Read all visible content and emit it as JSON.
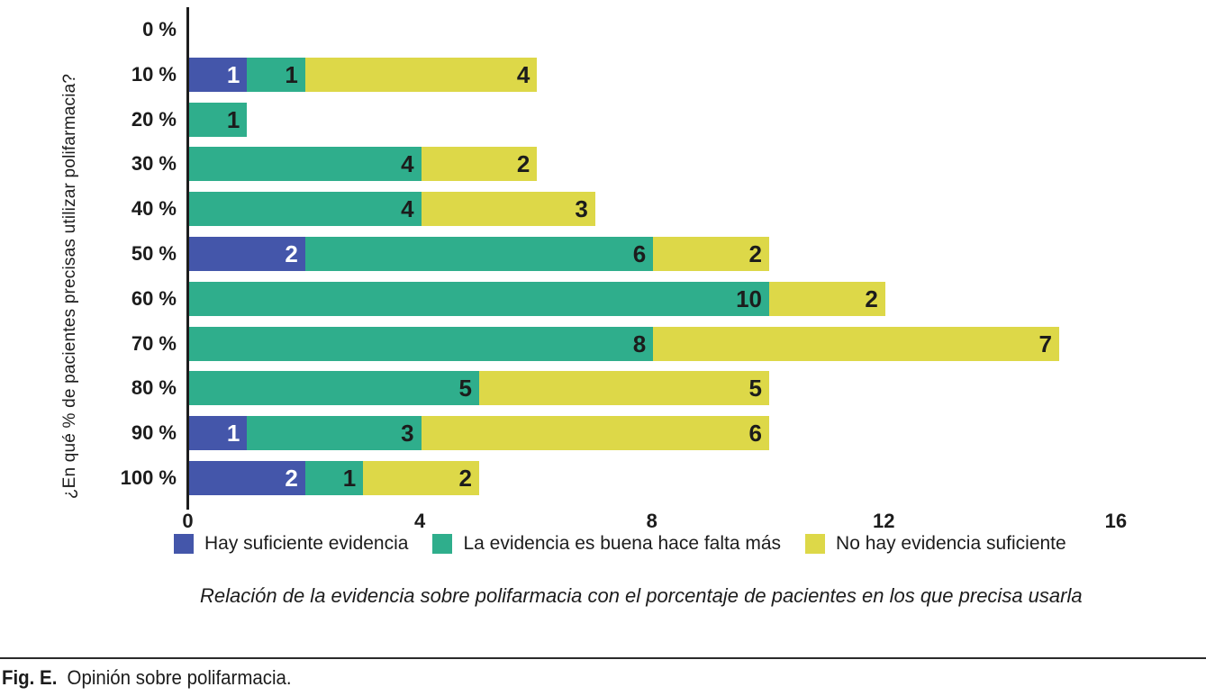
{
  "figure": {
    "label": "Fig. E.",
    "caption": "Opinión sobre polifarmacia."
  },
  "chart_data": {
    "type": "bar",
    "orientation": "horizontal",
    "stacked": true,
    "title": "",
    "xlabel": "",
    "ylabel": "¿En qué % de pacientes precisas utilizar polifarmacia?",
    "categories": [
      "0 %",
      "10 %",
      "20 %",
      "30 %",
      "40 %",
      "50 %",
      "60 %",
      "70 %",
      "80 %",
      "90 %",
      "100 %"
    ],
    "series": [
      {
        "name": "Hay suficiente evidencia",
        "color": "#4456aa",
        "label_color": "#ffffff",
        "values": [
          0,
          1,
          0,
          0,
          0,
          2,
          0,
          0,
          0,
          1,
          2
        ]
      },
      {
        "name": "La evidencia es buena hace falta más",
        "color": "#2fae8c",
        "label_color": "#1c1c1c",
        "values": [
          0,
          1,
          1,
          4,
          4,
          6,
          10,
          8,
          5,
          3,
          1
        ]
      },
      {
        "name": "No hay evidencia suficiente",
        "color": "#ddd848",
        "label_color": "#1c1c1c",
        "values": [
          0,
          4,
          0,
          2,
          3,
          2,
          2,
          7,
          5,
          6,
          2
        ]
      }
    ],
    "xlim": [
      0,
      16
    ],
    "x_ticks": [
      0,
      4,
      8,
      12,
      16
    ],
    "grid": false,
    "bar_value_labels": true,
    "legend_position": "bottom",
    "caption": "Relación de la evidencia sobre polifarmacia con el porcentaje de pacientes en los que precisa usarla"
  }
}
